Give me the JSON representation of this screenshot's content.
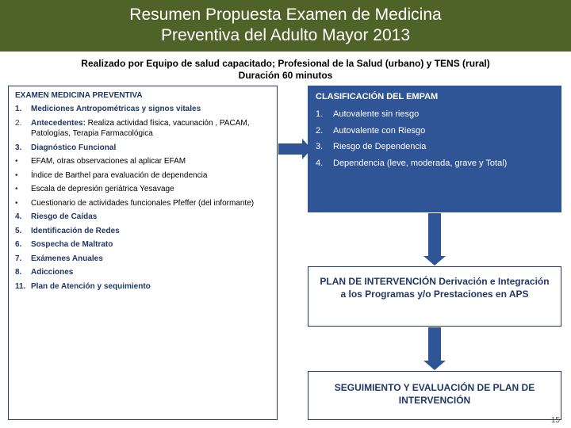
{
  "colors": {
    "titleBg": "#4f6228",
    "boxBorder": "#203864",
    "blueBox": "#2f5597",
    "pageBg": "#ffffff",
    "text": "#000000",
    "accentText": "#203864"
  },
  "title": {
    "line1": "Resumen Propuesta Examen de Medicina",
    "line2": "Preventiva del Adulto Mayor 2013"
  },
  "subtitle": {
    "line1": "Realizado por Equipo de salud  capacitado; Profesional de la Salud (urbano) y  TENS  (rural)",
    "line2": "Duración 60 minutos"
  },
  "left": {
    "header": "EXAMEN MEDICINA PREVENTIVA",
    "items": [
      {
        "num": "1.",
        "bold": true,
        "text": "Mediciones Antropométricas y signos vitales"
      },
      {
        "num": "2.",
        "strong": true,
        "label": "Antecedentes:",
        "rest": " Realiza actividad física, vacunación , PACAM, Patologías, Terapia Farmacológica"
      },
      {
        "num": "3.",
        "bold": true,
        "text": "Diagnóstico Funcional"
      },
      {
        "num": "•",
        "text": "EFAM, otras observaciones al aplicar EFAM"
      },
      {
        "num": "•",
        "justify": true,
        "text": "Índice de Barthel para evaluación de dependencia"
      },
      {
        "num": "•",
        "text": "Escala de depresión geriátrica Yesavage"
      },
      {
        "num": "•",
        "justify": true,
        "text": "Cuestionario de actividades funcionales Pfeffer (del informante)"
      },
      {
        "num": "4.",
        "bold": true,
        "text": "Riesgo de Caídas"
      },
      {
        "num": "5.",
        "bold": true,
        "text": " Identificación de Redes"
      },
      {
        "num": "6.",
        "bold": true,
        "text": "Sospecha de Maltrato"
      },
      {
        "num": "7.",
        "bold": true,
        "text": "Exámenes Anuales"
      },
      {
        "num": "8.",
        "bold": true,
        "text": "Adicciones"
      },
      {
        "num": "11.",
        "bold": true,
        "text": " Plan de Atención y sequimiento"
      }
    ]
  },
  "rightTop": {
    "header": "CLASIFICACIÓN DEL EMPAM",
    "items": [
      {
        "num": "1.",
        "text": "Autovalente sin riesgo"
      },
      {
        "num": "2.",
        "text": "Autovalente con Riesgo"
      },
      {
        "num": "3.",
        "text": "Riesgo de Dependencia"
      },
      {
        "num": "4.",
        "text": "Dependencia (leve, moderada, grave y Total)"
      }
    ]
  },
  "rightMid": "PLAN DE INTERVENCIÓN Derivación e Integración a los Programas y/o Prestaciones en APS",
  "rightBot": "SEGUIMIENTO Y EVALUACIÓN DE PLAN DE INTERVENCIÓN",
  "pageNumber": "15"
}
